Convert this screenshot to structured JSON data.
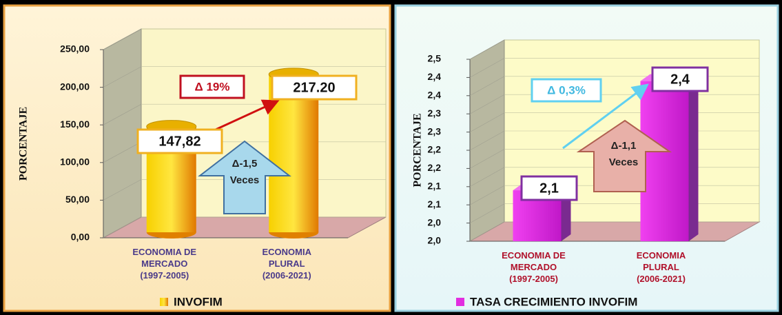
{
  "chart_data": [
    {
      "type": "cylinder-bar",
      "y_label": "PORCENTAJE",
      "categories": [
        "ECONOMIA DE\nMERCADO\n(1997-2005)",
        "ECONOMIA\nPLURAL\n(2006-2021)"
      ],
      "series": [
        {
          "name": "INVOFIM",
          "color": "#f2c200",
          "values": [
            147.82,
            217.2
          ],
          "value_labels": [
            "147,82",
            "217.20"
          ]
        }
      ],
      "ylim": [
        0,
        250
      ],
      "yticks": [
        {
          "value": 0,
          "label": "0,00"
        },
        {
          "value": 50,
          "label": "50,00"
        },
        {
          "value": 100,
          "label": "100,00"
        },
        {
          "value": 150,
          "label": "150,00"
        },
        {
          "value": 200,
          "label": "200,00"
        },
        {
          "value": 250,
          "label": "250,00"
        }
      ],
      "annotations": [
        "Δ 19%",
        "Δ-1,5",
        "Veces"
      ]
    },
    {
      "type": "prism-bar",
      "y_label": "PORCENTAJE",
      "categories": [
        "ECONOMIA DE\nMERCADO\n(1997-2005)",
        "ECONOMIA\nPLURAL\n(2006-2021)"
      ],
      "series": [
        {
          "name": "TASA CRECIMIENTO INVOFIM",
          "color": "#e22ee0",
          "values": [
            2.14,
            2.44
          ],
          "value_labels": [
            "2,1",
            "2,4"
          ]
        }
      ],
      "ylim": [
        2.0,
        2.5
      ],
      "yticks": [
        {
          "value": 2.0,
          "label": "2,0"
        },
        {
          "value": 2.05,
          "label": "2,0"
        },
        {
          "value": 2.1,
          "label": "2,1"
        },
        {
          "value": 2.15,
          "label": "2,1"
        },
        {
          "value": 2.2,
          "label": "2,2"
        },
        {
          "value": 2.25,
          "label": "2,2"
        },
        {
          "value": 2.3,
          "label": "2,3"
        },
        {
          "value": 2.35,
          "label": "2,3"
        },
        {
          "value": 2.4,
          "label": "2,4"
        },
        {
          "value": 2.45,
          "label": "2,4"
        },
        {
          "value": 2.5,
          "label": "2,5"
        }
      ],
      "annotations": [
        "Δ 0,3%",
        "Δ-1,1",
        "Veces"
      ]
    }
  ]
}
